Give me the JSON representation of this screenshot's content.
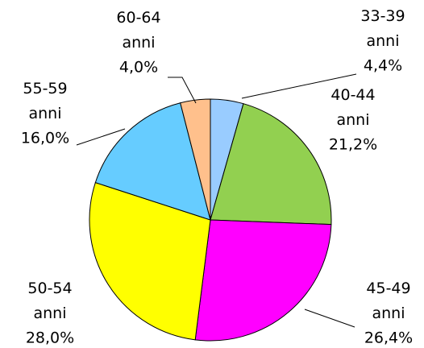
{
  "chart_data": {
    "type": "pie",
    "categories": [
      "33-39 anni",
      "40-44 anni",
      "45-49 anni",
      "50-54 anni",
      "55-59 anni",
      "60-64 anni"
    ],
    "values": [
      4.4,
      21.2,
      26.4,
      28.0,
      16.0,
      4.0
    ],
    "value_labels": [
      "4,4%",
      "21,2%",
      "26,4%",
      "28,0%",
      "16,0%",
      "4,0%"
    ],
    "colors": [
      "#99ccff",
      "#92d050",
      "#ff00ff",
      "#ffff00",
      "#66ccff",
      "#ffc08c"
    ]
  }
}
